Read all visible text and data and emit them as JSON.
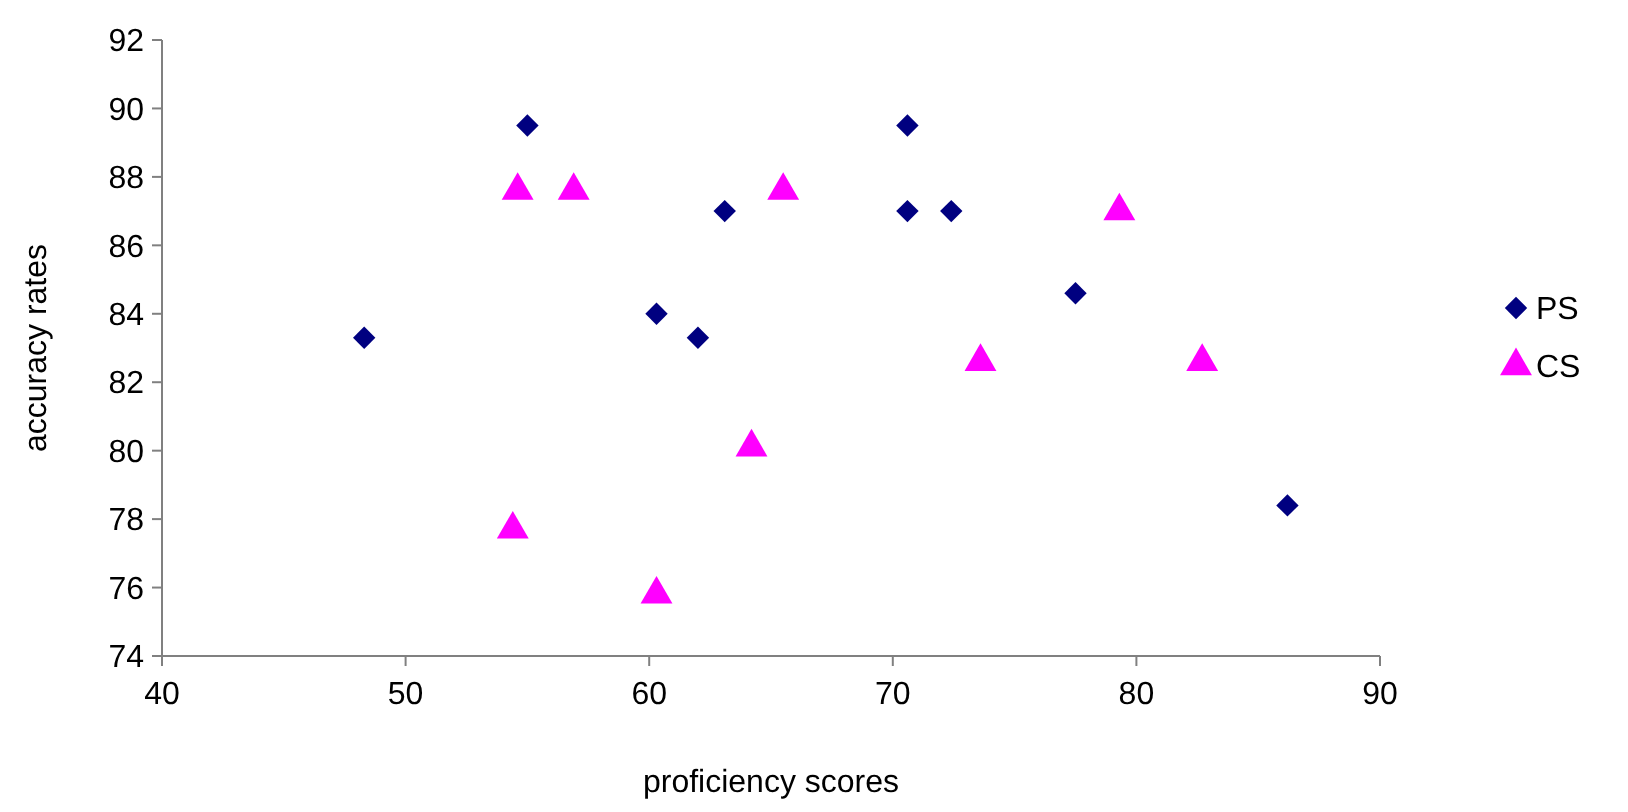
{
  "chart_data": {
    "type": "scatter",
    "xlabel": "proficiency scores",
    "ylabel": "accuracy rates",
    "xlim": [
      40,
      90
    ],
    "xticks": [
      40,
      50,
      60,
      70,
      80,
      90
    ],
    "ylim": [
      74,
      92
    ],
    "yticks": [
      74,
      76,
      78,
      80,
      82,
      84,
      86,
      88,
      90,
      92
    ],
    "grid": false,
    "legend": "right",
    "series": [
      {
        "name": "PS",
        "color": "#000080",
        "marker": "diamond",
        "x": [
          48.3,
          55,
          60.3,
          62,
          63.1,
          70.6,
          70.6,
          72.4,
          77.5,
          86.2
        ],
        "values": [
          83.3,
          89.5,
          84,
          83.3,
          87,
          89.5,
          87,
          87,
          84.6,
          78.4
        ]
      },
      {
        "name": "CS",
        "color": "#ff00ff",
        "marker": "triangle",
        "x": [
          54.6,
          56.9,
          65.5,
          79.3,
          73.6,
          82.7,
          64.2,
          54.4,
          60.3
        ],
        "values": [
          87.6,
          87.6,
          87.6,
          87,
          82.6,
          82.6,
          80.1,
          77.7,
          75.8
        ]
      }
    ]
  }
}
